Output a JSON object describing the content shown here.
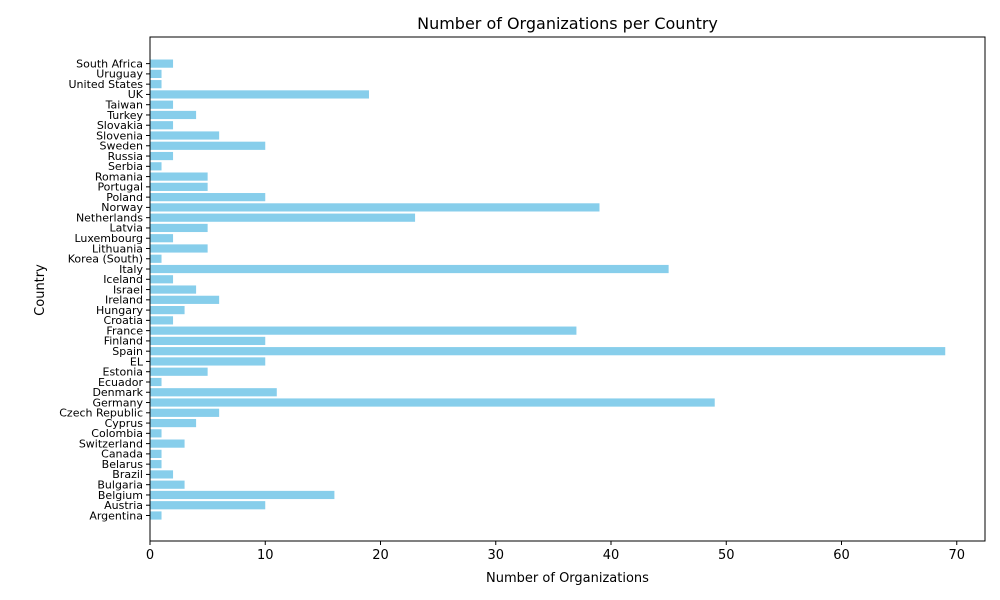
{
  "chart_data": {
    "type": "bar",
    "orientation": "horizontal",
    "title": "Number of Organizations per Country",
    "xlabel": "Number of Organizations",
    "ylabel": "Country",
    "xlim": [
      0,
      72.45
    ],
    "xticks": [
      0,
      10,
      20,
      30,
      40,
      50,
      60,
      70
    ],
    "grid": false,
    "bar_color": "#87ceeb",
    "categories": [
      "Argentina",
      "Austria",
      "Belgium",
      "Bulgaria",
      "Brazil",
      "Belarus",
      "Canada",
      "Switzerland",
      "Colombia",
      "Cyprus",
      "Czech Republic",
      "Germany",
      "Denmark",
      "Ecuador",
      "Estonia",
      "EL",
      "Spain",
      "Finland",
      "France",
      "Croatia",
      "Hungary",
      "Ireland",
      "Israel",
      "Iceland",
      "Italy",
      "Korea (South)",
      "Lithuania",
      "Luxembourg",
      "Latvia",
      "Netherlands",
      "Norway",
      "Poland",
      "Portugal",
      "Romania",
      "Serbia",
      "Russia",
      "Sweden",
      "Slovenia",
      "Slovakia",
      "Turkey",
      "Taiwan",
      "UK",
      "United States",
      "Uruguay",
      "South Africa"
    ],
    "values": [
      1,
      10,
      16,
      3,
      2,
      1,
      1,
      3,
      1,
      4,
      6,
      49,
      11,
      1,
      5,
      10,
      69,
      10,
      37,
      2,
      3,
      6,
      4,
      2,
      45,
      1,
      5,
      2,
      5,
      23,
      39,
      10,
      5,
      5,
      1,
      2,
      10,
      6,
      2,
      4,
      2,
      19,
      1,
      1,
      2
    ]
  }
}
